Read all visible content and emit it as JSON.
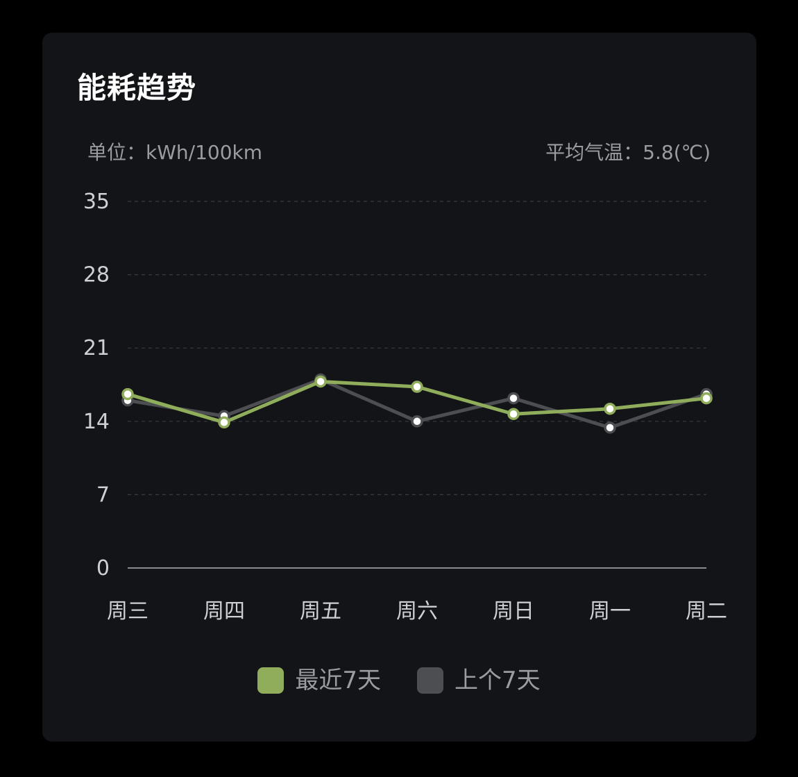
{
  "card": {
    "title": "能耗趋势",
    "unit_label": "单位：kWh/100km",
    "temp_label": "平均气温：5.8(℃)"
  },
  "colors": {
    "recent": "#8fad5a",
    "previous": "#4d4e52",
    "grid": "#3a3b3f",
    "axis": "#8a8b8f",
    "tick_text": "#cfd0d3",
    "marker_fill": "#ffffff"
  },
  "chart_data": {
    "type": "line",
    "categories": [
      "周三",
      "周四",
      "周五",
      "周六",
      "周日",
      "周一",
      "周二"
    ],
    "yticks": [
      "0",
      "7",
      "14",
      "21",
      "28",
      "35"
    ],
    "ylim": [
      0,
      35
    ],
    "grid": true,
    "legend_position": "bottom-center",
    "series": [
      {
        "name": "最近7天",
        "color": "#8fad5a",
        "values": [
          16.6,
          13.9,
          17.8,
          17.3,
          14.7,
          15.2,
          16.2
        ]
      },
      {
        "name": "上个7天",
        "color": "#4d4e52",
        "values": [
          16.0,
          14.5,
          18.0,
          14.0,
          16.2,
          13.4,
          16.6
        ]
      }
    ]
  }
}
